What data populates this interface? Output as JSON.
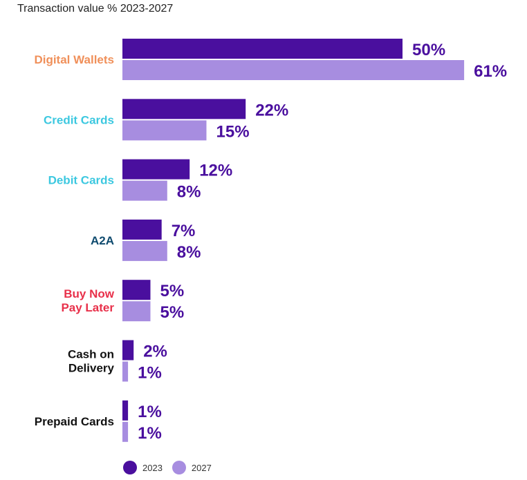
{
  "chart_data": {
    "type": "bar",
    "orientation": "horizontal",
    "subtitle": "Transaction value % 2023-2027",
    "categories": [
      {
        "label_lines": [
          "Digital Wallets"
        ],
        "color": "#f0905a"
      },
      {
        "label_lines": [
          "Credit Cards"
        ],
        "color": "#3cc8e0"
      },
      {
        "label_lines": [
          "Debit Cards"
        ],
        "color": "#3cc8e0"
      },
      {
        "label_lines": [
          "A2A"
        ],
        "color": "#0e4a6e"
      },
      {
        "label_lines": [
          "Buy Now",
          "Pay Later"
        ],
        "color": "#e8304a"
      },
      {
        "label_lines": [
          "Cash on",
          "Delivery"
        ],
        "color": "#111111"
      },
      {
        "label_lines": [
          "Prepaid Cards"
        ],
        "color": "#111111"
      }
    ],
    "series": [
      {
        "name": "2023",
        "color": "#4a0f9e",
        "values": [
          50,
          22,
          12,
          7,
          5,
          2,
          1
        ],
        "labels": [
          "50%",
          "22%",
          "12%",
          "7%",
          "5%",
          "2%",
          "1%"
        ]
      },
      {
        "name": "2027",
        "color": "#a78de0",
        "values": [
          61,
          15,
          8,
          8,
          5,
          1,
          1
        ],
        "labels": [
          "61%",
          "15%",
          "8%",
          "8%",
          "5%",
          "1%",
          "1%"
        ]
      }
    ],
    "xlim": [
      0,
      61
    ],
    "value_label_color": "#4a0f9e",
    "legend_position": "bottom-left"
  }
}
